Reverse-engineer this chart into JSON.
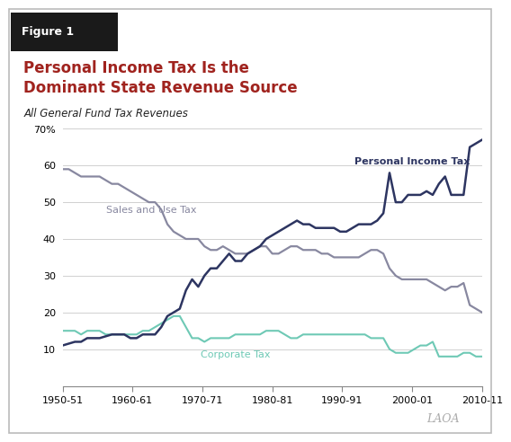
{
  "title": "Personal Income Tax Is the\nDominant State Revenue Source",
  "subtitle": "All General Fund Tax Revenues",
  "figure_label": "Figure 1",
  "watermark": "LAOA",
  "x_labels": [
    "1950-51",
    "1960-61",
    "1970-71",
    "1980-81",
    "1990-91",
    "2000-01",
    "2010-11"
  ],
  "ylim": [
    0,
    70
  ],
  "yticks": [
    10,
    20,
    30,
    40,
    50,
    60,
    70
  ],
  "title_color": "#a0231e",
  "subtitle_color": "#222222",
  "figure_label_bg": "#1a1a1a",
  "pit_color": "#2d3561",
  "sut_color": "#8888a0",
  "corp_color": "#6ec9b5",
  "pit_label": "Personal Income Tax",
  "sut_label": "Sales and Use Tax",
  "corp_label": "Corporate Tax",
  "pit_data": [
    11,
    11.5,
    12,
    12,
    13,
    13,
    13,
    13.5,
    14,
    14,
    14,
    13,
    13,
    14,
    14,
    14,
    16,
    19,
    20,
    21,
    26,
    29,
    27,
    30,
    32,
    32,
    34,
    36,
    34,
    34,
    36,
    37,
    38,
    40,
    41,
    42,
    43,
    44,
    45,
    44,
    44,
    43,
    43,
    43,
    43,
    42,
    42,
    43,
    44,
    44,
    44,
    45,
    47,
    58,
    50,
    50,
    52,
    52,
    52,
    53,
    52,
    55,
    57,
    52,
    52,
    52,
    65,
    66,
    67
  ],
  "sut_data": [
    59,
    59,
    58,
    57,
    57,
    57,
    57,
    56,
    55,
    55,
    54,
    53,
    52,
    51,
    50,
    50,
    48,
    44,
    42,
    41,
    40,
    40,
    40,
    38,
    37,
    37,
    38,
    37,
    36,
    36,
    36,
    37,
    38,
    38,
    36,
    36,
    37,
    38,
    38,
    37,
    37,
    37,
    36,
    36,
    35,
    35,
    35,
    35,
    35,
    36,
    37,
    37,
    36,
    32,
    30,
    29,
    29,
    29,
    29,
    29,
    28,
    27,
    26,
    27,
    27,
    28,
    22,
    21,
    20
  ],
  "corp_data": [
    15,
    15,
    15,
    14,
    15,
    15,
    15,
    14,
    14,
    14,
    14,
    14,
    14,
    15,
    15,
    16,
    17,
    18,
    19,
    19,
    16,
    13,
    13,
    12,
    13,
    13,
    13,
    13,
    14,
    14,
    14,
    14,
    14,
    15,
    15,
    15,
    14,
    13,
    13,
    14,
    14,
    14,
    14,
    14,
    14,
    14,
    14,
    14,
    14,
    14,
    13,
    13,
    13,
    10,
    9,
    9,
    9,
    10,
    11,
    11,
    12,
    8,
    8,
    8,
    8,
    9,
    9,
    8,
    8
  ]
}
